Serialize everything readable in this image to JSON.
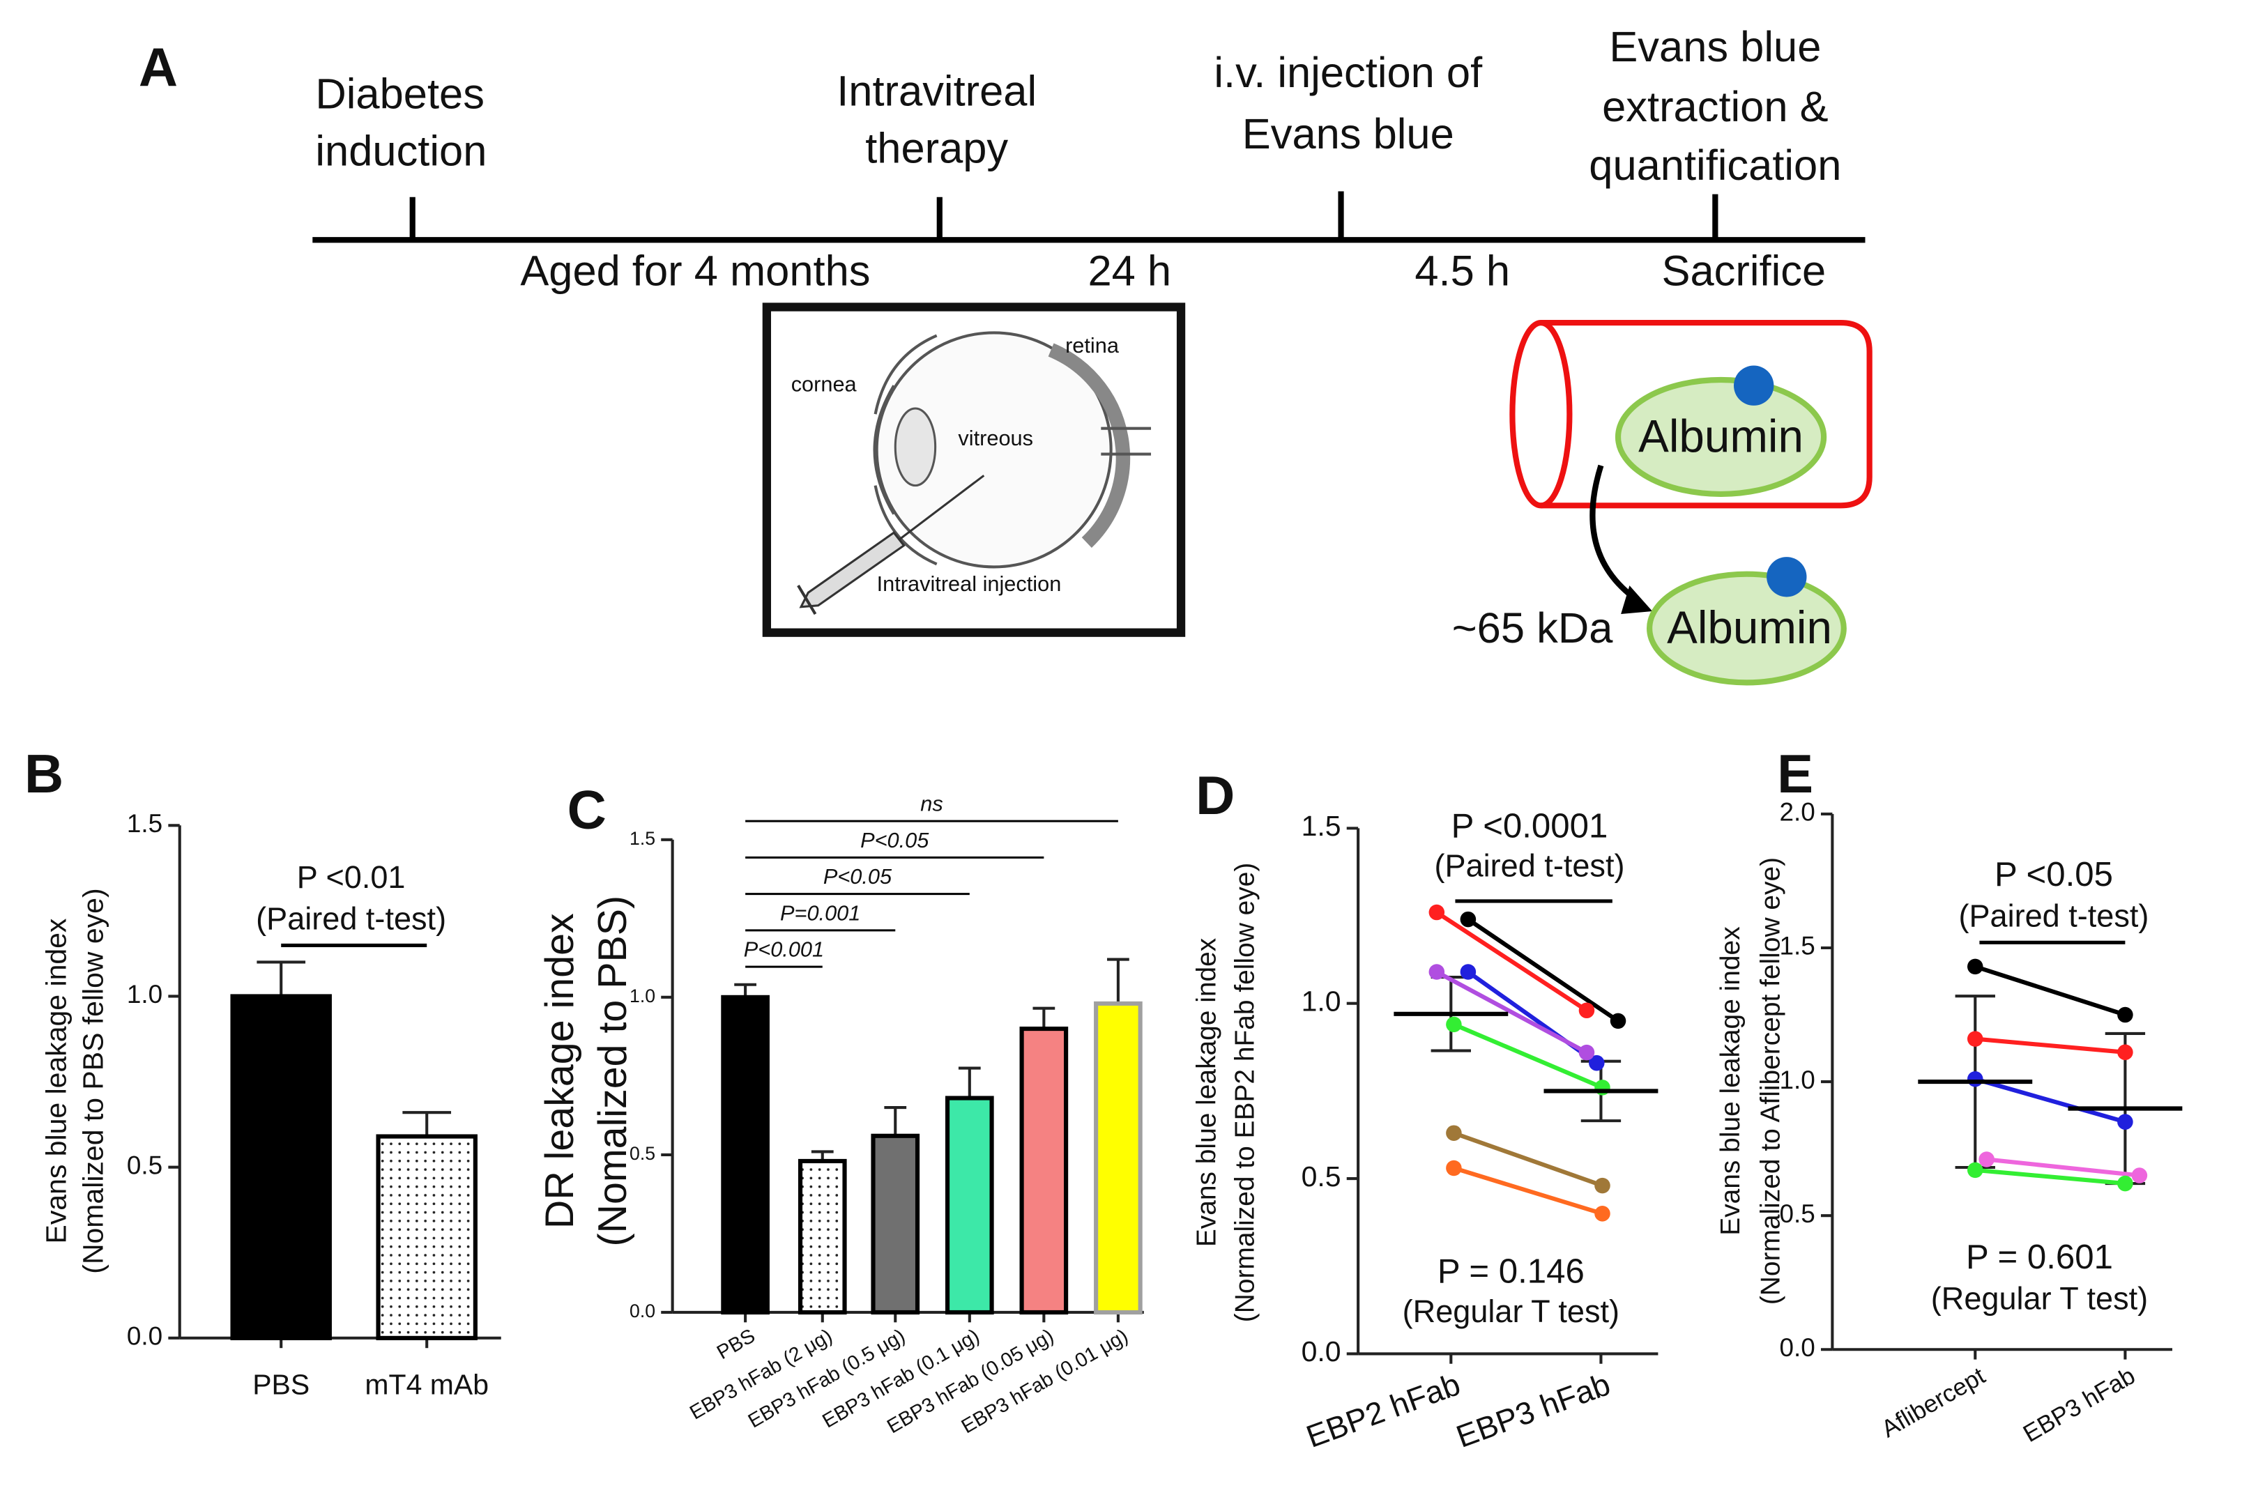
{
  "diagram": {
    "panel_label": "A",
    "steps": [
      [
        "Diabetes",
        "induction"
      ],
      [
        "Intravitreal",
        "therapy"
      ],
      [
        "i.v. injection of",
        "Evans blue"
      ],
      [
        "Evans blue",
        "extraction &",
        "quantification"
      ]
    ],
    "intervals": [
      "Aged for 4 months",
      "24 h",
      "4.5 h",
      "Sacrifice"
    ],
    "eye_labels": [
      "cornea",
      "retina",
      "vitreous",
      "Intravitreal injection"
    ],
    "albumin": "Albumin",
    "size": "~65 kDa"
  },
  "chart_data": [
    {
      "type": "bar",
      "panel_label": "B",
      "categories": [
        "PBS",
        "mT4 mAb"
      ],
      "values": [
        1.0,
        0.59
      ],
      "errors": [
        0.1,
        0.07
      ],
      "colors": [
        "#000000",
        "dotted"
      ],
      "edge_colors": [
        "#000000",
        "#000000"
      ],
      "ylim": [
        0,
        1.5
      ],
      "yticks": [
        {
          "value": 0,
          "label": "0.0"
        },
        0.5,
        {
          "value": 1,
          "label": "1.0"
        },
        1.5
      ],
      "ylabel": [
        "Evans blue leakage index",
        "(Nomalized to PBS  fellow eye)"
      ],
      "annotations": [
        "P <0.01",
        "(Paired t-test)"
      ]
    },
    {
      "type": "bar",
      "panel_label": "C",
      "categories": [
        "PBS",
        "EBP3 hFab (2 μg)",
        "EBP3 hFab (0.5 μg)",
        "EBP3 hFab (0.1 μg)",
        "EBP3 hFab (0.05 μg)",
        "EBP3 hFab (0.01 μg)"
      ],
      "values": [
        1.0,
        0.48,
        0.56,
        0.68,
        0.9,
        0.98
      ],
      "errors": [
        0.04,
        0.03,
        0.09,
        0.095,
        0.065,
        0.14
      ],
      "colors": [
        "#000000",
        "dotted",
        "#707070",
        "#3de8a8",
        "#f58282",
        "#ffff00"
      ],
      "edge_colors": [
        "#000000",
        "#000000",
        "#000000",
        "#000000",
        "#000000",
        "#a0a0a0"
      ],
      "ylim": [
        0,
        1.5
      ],
      "yticks": [
        {
          "value": 0,
          "label": "0.0"
        },
        0.5,
        {
          "value": 1,
          "label": "1.0"
        },
        1.5
      ],
      "ylabel": [
        "DR leakage index",
        "(Nomalized to PBS)"
      ],
      "comparisons": [
        "P<0.001",
        "P=0.001",
        "P<0.05",
        "P<0.05",
        "ns"
      ]
    },
    {
      "type": "paired",
      "panel_label": "D",
      "categories": [
        "EBP2 hFab",
        "EBP3 hFab"
      ],
      "series": [
        {
          "color": "#000000",
          "values": [
            1.24,
            0.95
          ]
        },
        {
          "color": "#ff2020",
          "values": [
            1.26,
            0.98
          ]
        },
        {
          "color": "#2020dd",
          "values": [
            1.09,
            0.83
          ]
        },
        {
          "color": "#b04ee0",
          "values": [
            1.09,
            0.86
          ]
        },
        {
          "color": "#33ee33",
          "values": [
            0.94,
            0.76
          ]
        },
        {
          "color": "#a07838",
          "values": [
            0.63,
            0.48
          ]
        },
        {
          "color": "#ff6a20",
          "values": [
            0.53,
            0.4
          ]
        }
      ],
      "mean": [
        0.97,
        0.75
      ],
      "errors": [
        0.105,
        0.085
      ],
      "ylim": [
        0,
        1.5
      ],
      "yticks": [
        {
          "value": 0,
          "label": "0.0"
        },
        0.5,
        {
          "value": 1,
          "label": "1.0"
        },
        1.5
      ],
      "ylabel": [
        "Evans blue leakage index",
        "(Normalized to EBP2 hFab fellow eye)"
      ],
      "annotations": [
        "P <0.0001",
        "(Paired t-test)",
        "P = 0.146",
        "(Regular T test)"
      ]
    },
    {
      "type": "paired",
      "panel_label": "E",
      "categories": [
        "Aflibercept",
        "EBP3 hFab"
      ],
      "series": [
        {
          "color": "#000000",
          "values": [
            1.43,
            1.25
          ]
        },
        {
          "color": "#ff2020",
          "values": [
            1.16,
            1.11
          ]
        },
        {
          "color": "#2020dd",
          "values": [
            1.01,
            0.85
          ]
        },
        {
          "color": "#ee66dd",
          "values": [
            0.71,
            0.65
          ]
        },
        {
          "color": "#33ee33",
          "values": [
            0.67,
            0.62
          ]
        }
      ],
      "mean": [
        1.0,
        0.9
      ],
      "errors": [
        0.32,
        0.28
      ],
      "ylim": [
        0,
        2
      ],
      "yticks": [
        {
          "value": 0,
          "label": "0.0"
        },
        0.5,
        {
          "value": 1,
          "label": "1.0"
        },
        1.5,
        {
          "value": 2,
          "label": "2.0"
        }
      ],
      "ylabel": [
        "Evans blue leakage index",
        "(Normalized to Aflibercept fellow eye)"
      ],
      "annotations": [
        "P <0.05",
        "(Paired t-test)",
        "P = 0.601",
        "(Regular T test)"
      ]
    }
  ]
}
